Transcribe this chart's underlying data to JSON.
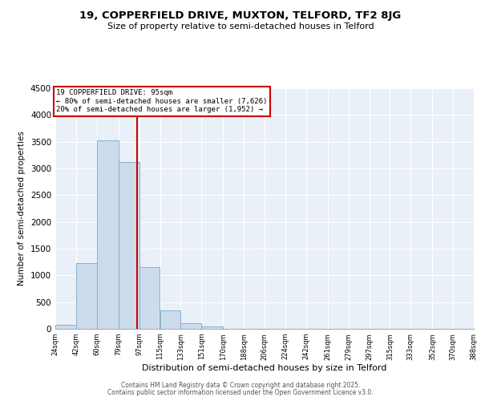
{
  "title": "19, COPPERFIELD DRIVE, MUXTON, TELFORD, TF2 8JG",
  "subtitle": "Size of property relative to semi-detached houses in Telford",
  "xlabel": "Distribution of semi-detached houses by size in Telford",
  "ylabel": "Number of semi-detached properties",
  "bar_color": "#ccdcec",
  "bar_edge_color": "#7aaac8",
  "bins": [
    24,
    42,
    60,
    79,
    97,
    115,
    133,
    151,
    170,
    188,
    206,
    224,
    242,
    261,
    279,
    297,
    315,
    333,
    352,
    370,
    388
  ],
  "bin_labels": [
    "24sqm",
    "42sqm",
    "60sqm",
    "79sqm",
    "97sqm",
    "115sqm",
    "133sqm",
    "151sqm",
    "170sqm",
    "188sqm",
    "206sqm",
    "224sqm",
    "242sqm",
    "261sqm",
    "279sqm",
    "297sqm",
    "315sqm",
    "333sqm",
    "352sqm",
    "370sqm",
    "388sqm"
  ],
  "values": [
    75,
    1225,
    3520,
    3115,
    1155,
    345,
    105,
    40,
    0,
    0,
    0,
    0,
    0,
    0,
    0,
    0,
    0,
    0,
    0,
    0
  ],
  "vline_x": 95,
  "vline_color": "#cc0000",
  "annotation_title": "19 COPPERFIELD DRIVE: 95sqm",
  "annotation_line1": "← 80% of semi-detached houses are smaller (7,626)",
  "annotation_line2": "20% of semi-detached houses are larger (1,952) →",
  "annotation_box_color": "#cc0000",
  "ylim": [
    0,
    4500
  ],
  "yticks": [
    0,
    500,
    1000,
    1500,
    2000,
    2500,
    3000,
    3500,
    4000,
    4500
  ],
  "bg_color": "#eaf0f7",
  "grid_color": "#ffffff",
  "footer1": "Contains HM Land Registry data © Crown copyright and database right 2025.",
  "footer2": "Contains public sector information licensed under the Open Government Licence v3.0."
}
